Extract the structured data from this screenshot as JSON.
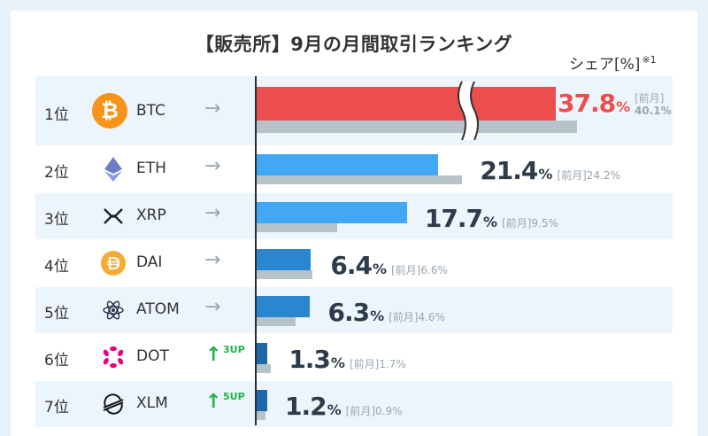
{
  "title": "【販売所】9月の月間取引ランキング",
  "share_label": "シェア[%]",
  "share_note": "※1",
  "prev_label": "[前月]",
  "arrow_glyph": "→",
  "up_glyph": "↑",
  "colors": {
    "top_bar": "#ec4d4d",
    "light_blue_bar": "#42a8f5",
    "mid_blue_bar": "#2a86cf",
    "dark_blue_bar": "#1f67ad",
    "prev_bar": "#b7c3cb",
    "axis": "#2d2d2d",
    "up": "#22b14c"
  },
  "chart_data": {
    "type": "bar",
    "title": "【販売所】9月の月間取引ランキング",
    "value_label": "シェア[%]",
    "axis_break": true,
    "categories": [
      "BTC",
      "ETH",
      "XRP",
      "DAI",
      "ATOM",
      "DOT",
      "XLM"
    ],
    "ranks": [
      "1位",
      "2位",
      "3位",
      "4位",
      "5位",
      "6位",
      "7位"
    ],
    "series": [
      {
        "name": "9月",
        "values": [
          37.8,
          21.4,
          17.7,
          6.4,
          6.3,
          1.3,
          1.2
        ]
      },
      {
        "name": "[前月]",
        "values": [
          40.1,
          24.2,
          9.5,
          6.6,
          4.6,
          1.7,
          0.9
        ]
      }
    ],
    "rank_change": [
      "→",
      "→",
      "→",
      "→",
      "→",
      "3UP",
      "5UP"
    ]
  },
  "rows": [
    {
      "rank": "1位",
      "symbol": "BTC",
      "value": "37.8",
      "prev": "40.1%",
      "change": "→",
      "up_n": ""
    },
    {
      "rank": "2位",
      "symbol": "ETH",
      "value": "21.4",
      "prev": "24.2%",
      "change": "→",
      "up_n": ""
    },
    {
      "rank": "3位",
      "symbol": "XRP",
      "value": "17.7",
      "prev": "9.5%",
      "change": "→",
      "up_n": ""
    },
    {
      "rank": "4位",
      "symbol": "DAI",
      "value": "6.4",
      "prev": "6.6%",
      "change": "→",
      "up_n": ""
    },
    {
      "rank": "5位",
      "symbol": "ATOM",
      "value": "6.3",
      "prev": "4.6%",
      "change": "→",
      "up_n": ""
    },
    {
      "rank": "6位",
      "symbol": "DOT",
      "value": "1.3",
      "prev": "1.7%",
      "change": "↑",
      "up_n": "3UP"
    },
    {
      "rank": "7位",
      "symbol": "XLM",
      "value": "1.2",
      "prev": "0.9%",
      "change": "↑",
      "up_n": "5UP"
    }
  ],
  "icons": [
    "bitcoin-icon",
    "ethereum-icon",
    "xrp-icon",
    "dai-icon",
    "cosmos-atom-icon",
    "polkadot-icon",
    "stellar-icon"
  ]
}
